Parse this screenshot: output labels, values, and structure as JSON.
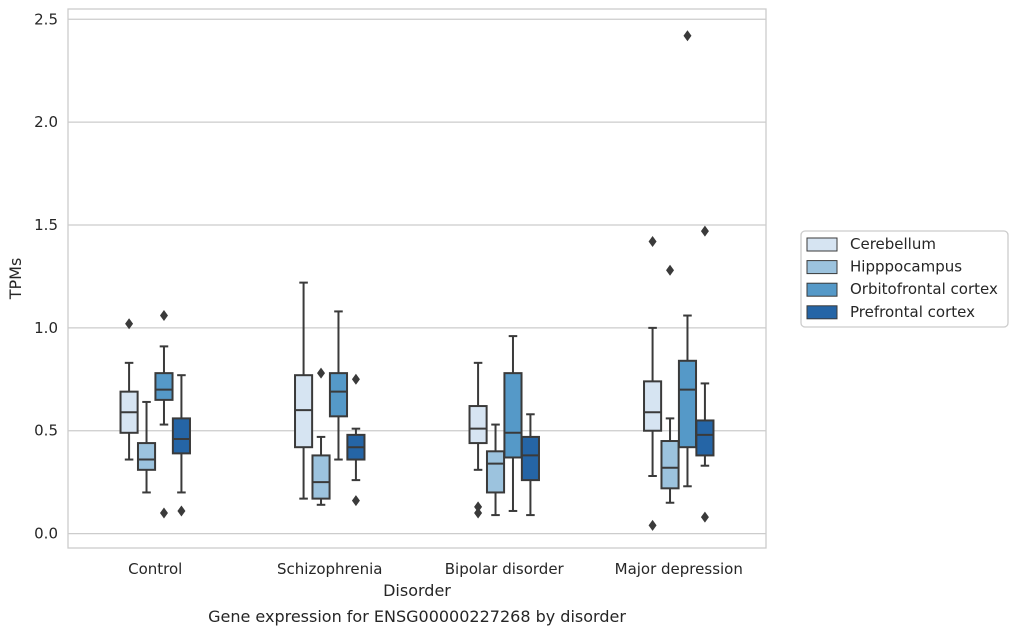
{
  "chart_data": {
    "type": "box",
    "xlabel": "Disorder",
    "ylabel": "TPMs",
    "caption": "Gene expression for ENSG00000227268 by disorder",
    "ylim": [
      -0.07,
      2.55
    ],
    "yticks": [
      0.0,
      0.5,
      1.0,
      1.5,
      2.0,
      2.5
    ],
    "ytick_labels": [
      "0.0",
      "0.5",
      "1.0",
      "1.5",
      "2.0",
      "2.5"
    ],
    "grid": "horizontal",
    "legend_position": "right",
    "categories": [
      "Control",
      "Schizophrenia",
      "Bipolar disorder",
      "Major depression"
    ],
    "series": [
      {
        "name": "Cerebellum",
        "color": "#d6e4f2",
        "boxes": [
          {
            "whislo": 0.36,
            "q1": 0.49,
            "med": 0.59,
            "q3": 0.69,
            "whishi": 0.83,
            "fliers": [
              1.02
            ]
          },
          {
            "whislo": 0.17,
            "q1": 0.42,
            "med": 0.6,
            "q3": 0.77,
            "whishi": 1.22,
            "fliers": []
          },
          {
            "whislo": 0.31,
            "q1": 0.44,
            "med": 0.51,
            "q3": 0.62,
            "whishi": 0.83,
            "fliers": [
              0.13,
              0.1
            ]
          },
          {
            "whislo": 0.28,
            "q1": 0.5,
            "med": 0.59,
            "q3": 0.74,
            "whishi": 1.0,
            "fliers": [
              1.42,
              0.04
            ]
          }
        ]
      },
      {
        "name": "Hipppocampus",
        "color": "#9cc3de",
        "boxes": [
          {
            "whislo": 0.2,
            "q1": 0.31,
            "med": 0.36,
            "q3": 0.44,
            "whishi": 0.64,
            "fliers": []
          },
          {
            "whislo": 0.14,
            "q1": 0.17,
            "med": 0.25,
            "q3": 0.38,
            "whishi": 0.47,
            "fliers": [
              0.78
            ]
          },
          {
            "whislo": 0.09,
            "q1": 0.2,
            "med": 0.34,
            "q3": 0.4,
            "whishi": 0.53,
            "fliers": []
          },
          {
            "whislo": 0.15,
            "q1": 0.22,
            "med": 0.32,
            "q3": 0.45,
            "whishi": 0.56,
            "fliers": [
              1.28
            ]
          }
        ]
      },
      {
        "name": "Orbitofrontal cortex",
        "color": "#5599c8",
        "boxes": [
          {
            "whislo": 0.53,
            "q1": 0.65,
            "med": 0.7,
            "q3": 0.78,
            "whishi": 0.91,
            "fliers": [
              1.06,
              0.1
            ]
          },
          {
            "whislo": 0.36,
            "q1": 0.57,
            "med": 0.69,
            "q3": 0.78,
            "whishi": 1.08,
            "fliers": []
          },
          {
            "whislo": 0.11,
            "q1": 0.37,
            "med": 0.49,
            "q3": 0.78,
            "whishi": 0.96,
            "fliers": []
          },
          {
            "whislo": 0.23,
            "q1": 0.42,
            "med": 0.7,
            "q3": 0.84,
            "whishi": 1.06,
            "fliers": [
              2.42
            ]
          }
        ]
      },
      {
        "name": "Prefrontal cortex",
        "color": "#2565a6",
        "boxes": [
          {
            "whislo": 0.2,
            "q1": 0.39,
            "med": 0.46,
            "q3": 0.56,
            "whishi": 0.77,
            "fliers": [
              0.11
            ]
          },
          {
            "whislo": 0.26,
            "q1": 0.36,
            "med": 0.42,
            "q3": 0.48,
            "whishi": 0.51,
            "fliers": [
              0.75,
              0.16
            ]
          },
          {
            "whislo": 0.09,
            "q1": 0.26,
            "med": 0.38,
            "q3": 0.47,
            "whishi": 0.58,
            "fliers": []
          },
          {
            "whislo": 0.33,
            "q1": 0.38,
            "med": 0.48,
            "q3": 0.55,
            "whishi": 0.73,
            "fliers": [
              1.47,
              0.08
            ]
          }
        ]
      }
    ]
  }
}
